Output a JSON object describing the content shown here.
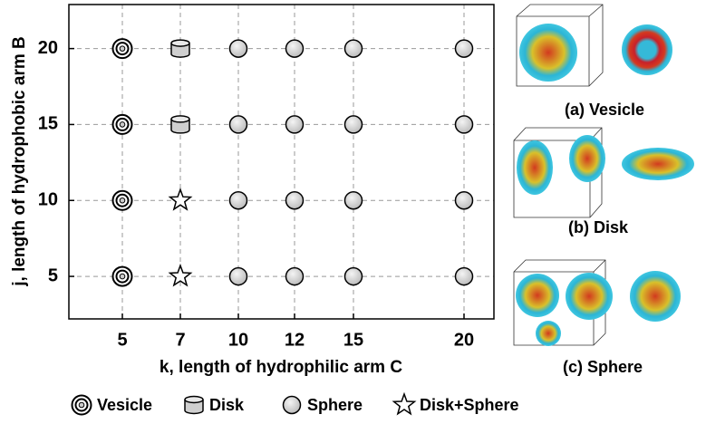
{
  "chart_data": {
    "type": "scatter",
    "x_label": "k,  length of hydrophilic arm C",
    "y_label": "j,  length of hydrophobic arm B",
    "xlim": [
      3.8,
      21.3
    ],
    "xticks": [
      5,
      7,
      10,
      12,
      15,
      20
    ],
    "ylim": [
      2.2,
      22.9
    ],
    "yticks": [
      5,
      10,
      15,
      20
    ],
    "grid": true,
    "series": [
      {
        "name": "Vesicle",
        "marker": "vesicle",
        "x": [
          5,
          5,
          5,
          5
        ],
        "y": [
          5,
          10,
          15,
          20
        ]
      },
      {
        "name": "Disk",
        "marker": "disk",
        "x": [
          7,
          7
        ],
        "y": [
          15,
          20
        ]
      },
      {
        "name": "Sphere",
        "marker": "sphere",
        "x": [
          10,
          10,
          10,
          10,
          12,
          12,
          12,
          12,
          15,
          15,
          15,
          15,
          20,
          20,
          20,
          20
        ],
        "y": [
          5,
          10,
          15,
          20,
          5,
          10,
          15,
          20,
          5,
          10,
          15,
          20,
          5,
          10,
          15,
          20
        ]
      },
      {
        "name": "Disk+Sphere",
        "marker": "star",
        "x": [
          7,
          7
        ],
        "y": [
          5,
          10
        ]
      }
    ],
    "panels": [
      "(a) Vesicle",
      "(b)   Disk",
      "(c) Sphere"
    ]
  }
}
